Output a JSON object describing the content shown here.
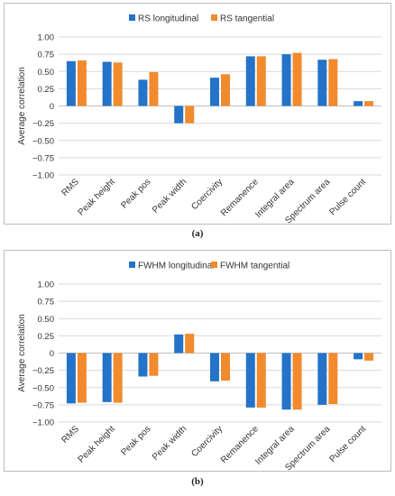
{
  "captions": [
    "(a)",
    "(b)"
  ],
  "colors": {
    "series1": "#2473c8",
    "series2": "#f28a2e",
    "grid": "#d9d9d9",
    "axis": "#bfbfbf"
  },
  "chart_data": [
    {
      "type": "bar",
      "ylabel": "Average correlation",
      "ylim": [
        -1.0,
        1.0
      ],
      "yticks": [
        "1.00",
        "0.75",
        "0.50",
        "0.25",
        "0",
        "−0.25",
        "−0.50",
        "−0.75",
        "−1.00"
      ],
      "grid": true,
      "legend": "top-center",
      "categories": [
        "RMS",
        "Peak height",
        "Peak pos",
        "Peak width",
        "Coercivity",
        "Remanence",
        "Integral area",
        "Spectrum area",
        "Pulse count"
      ],
      "series": [
        {
          "name": "RS longitudinal",
          "values": [
            0.65,
            0.64,
            0.38,
            -0.25,
            0.41,
            0.72,
            0.75,
            0.67,
            0.07
          ]
        },
        {
          "name": "RS tangential",
          "values": [
            0.66,
            0.63,
            0.49,
            -0.25,
            0.46,
            0.72,
            0.77,
            0.68,
            0.07
          ]
        }
      ]
    },
    {
      "type": "bar",
      "ylabel": "Average correlation",
      "ylim": [
        -1.0,
        1.0
      ],
      "yticks": [
        "1.00",
        "0.75",
        "0.50",
        "0.25",
        "0",
        "−0.25",
        "−0.50",
        "−0.75",
        "−1.00"
      ],
      "grid": true,
      "legend": "top-center",
      "categories": [
        "RMS",
        "Peak height",
        "Peak pos",
        "Peak width",
        "Coercivity",
        "Remanence",
        "Integral area",
        "Spectrum area",
        "Pulse count"
      ],
      "series": [
        {
          "name": "FWHM longitudinal",
          "values": [
            -0.73,
            -0.71,
            -0.34,
            0.27,
            -0.41,
            -0.79,
            -0.82,
            -0.75,
            -0.09
          ]
        },
        {
          "name": "FWHM tangential",
          "values": [
            -0.72,
            -0.72,
            -0.33,
            0.28,
            -0.4,
            -0.79,
            -0.82,
            -0.74,
            -0.11
          ]
        }
      ]
    }
  ]
}
